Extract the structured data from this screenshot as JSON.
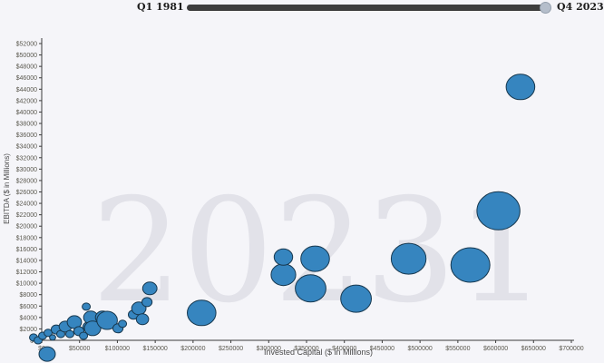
{
  "slider": {
    "start_label": "Q1 1981",
    "end_label": "Q4 2023"
  },
  "watermark": "20231",
  "colors": {
    "background": "#f5f5f9",
    "watermark": "#e2e2e9",
    "axis": "#3a3a3a",
    "tick_label": "#5a584e",
    "axis_title": "#4a4a4a",
    "marker_fill": "#3685bf",
    "marker_stroke": "#17384f",
    "slider_track": "#3d3d3d",
    "slider_handle": "#b5becb"
  },
  "chart_data": {
    "type": "scatter",
    "title": "",
    "xlabel": "Invested Capital ($ in Millions)",
    "ylabel": "EBITDA ($ in Millions)",
    "xlim": [
      0,
      700000
    ],
    "ylim": [
      0,
      52000
    ],
    "grid": false,
    "legend": null,
    "x_ticks": [
      0,
      50000,
      100000,
      150000,
      200000,
      250000,
      300000,
      350000,
      400000,
      450000,
      500000,
      550000,
      600000,
      650000,
      700000
    ],
    "x_tick_labels": [
      "$0",
      "$50000",
      "$100000",
      "$150000",
      "$200000",
      "$250000",
      "$300000",
      "$350000",
      "$400000",
      "$450000",
      "$500000",
      "$550000",
      "$600000",
      "$650000",
      "$700000"
    ],
    "y_ticks": [
      0,
      2000,
      4000,
      6000,
      8000,
      10000,
      12000,
      14000,
      16000,
      18000,
      20000,
      22000,
      24000,
      26000,
      28000,
      30000,
      32000,
      34000,
      36000,
      38000,
      40000,
      42000,
      44000,
      46000,
      48000,
      50000,
      52000
    ],
    "y_tick_labels": [
      "$0",
      "$2000",
      "$4000",
      "$6000",
      "$8000",
      "$10000",
      "$12000",
      "$14000",
      "$16000",
      "$18000",
      "$20000",
      "$22000",
      "$24000",
      "$26000",
      "$28000",
      "$30000",
      "$32000",
      "$34000",
      "$36000",
      "$38000",
      "$40000",
      "$42000",
      "$44000",
      "$46000",
      "$48000",
      "$50000",
      "$52000"
    ],
    "points": [
      {
        "ic": 632800,
        "ebitda": 44400,
        "r": 14
      },
      {
        "ic": 603600,
        "ebitda": 22700,
        "r": 21
      },
      {
        "ic": 566600,
        "ebitda": 13200,
        "r": 19
      },
      {
        "ic": 485000,
        "ebitda": 14300,
        "r": 17
      },
      {
        "ic": 415400,
        "ebitda": 7300,
        "r": 15
      },
      {
        "ic": 361400,
        "ebitda": 14300,
        "r": 14
      },
      {
        "ic": 355400,
        "ebitda": 9100,
        "r": 15
      },
      {
        "ic": 319400,
        "ebitda": 11500,
        "r": 12
      },
      {
        "ic": 319400,
        "ebitda": 14600,
        "r": 9
      },
      {
        "ic": 211300,
        "ebitda": 4800,
        "r": 14
      },
      {
        "ic": 142900,
        "ebitda": 9100,
        "r": 7
      },
      {
        "ic": 7200,
        "ebitda": -2400,
        "r": 8
      },
      {
        "ic": -10800,
        "ebitda": 500,
        "r": 4
      },
      {
        "ic": -4800,
        "ebitda": 0,
        "r": 4
      },
      {
        "ic": 1200,
        "ebitda": 800,
        "r": 4
      },
      {
        "ic": 8400,
        "ebitda": 1300,
        "r": 4
      },
      {
        "ic": 14400,
        "ebitda": 500,
        "r": 3
      },
      {
        "ic": 19200,
        "ebitda": 1900,
        "r": 5
      },
      {
        "ic": 25200,
        "ebitda": 1100,
        "r": 4
      },
      {
        "ic": 31200,
        "ebitda": 2400,
        "r": 6
      },
      {
        "ic": 37200,
        "ebitda": 1100,
        "r": 4
      },
      {
        "ic": 43200,
        "ebitda": 3200,
        "r": 7
      },
      {
        "ic": 49200,
        "ebitda": 1600,
        "r": 5
      },
      {
        "ic": 55200,
        "ebitda": 800,
        "r": 4
      },
      {
        "ic": 58800,
        "ebitda": 5900,
        "r": 4
      },
      {
        "ic": 61200,
        "ebitda": 2400,
        "r": 5
      },
      {
        "ic": 64800,
        "ebitda": 4000,
        "r": 7
      },
      {
        "ic": 67200,
        "ebitda": 2100,
        "r": 8
      },
      {
        "ic": 80400,
        "ebitda": 4000,
        "r": 7
      },
      {
        "ic": 86400,
        "ebitda": 3500,
        "r": 10
      },
      {
        "ic": 100800,
        "ebitda": 2100,
        "r": 5
      },
      {
        "ic": 106800,
        "ebitda": 2900,
        "r": 4
      },
      {
        "ic": 121200,
        "ebitda": 4500,
        "r": 5
      },
      {
        "ic": 128400,
        "ebitda": 5600,
        "r": 7
      },
      {
        "ic": 133200,
        "ebitda": 3700,
        "r": 6
      },
      {
        "ic": 139200,
        "ebitda": 6700,
        "r": 5
      }
    ]
  }
}
